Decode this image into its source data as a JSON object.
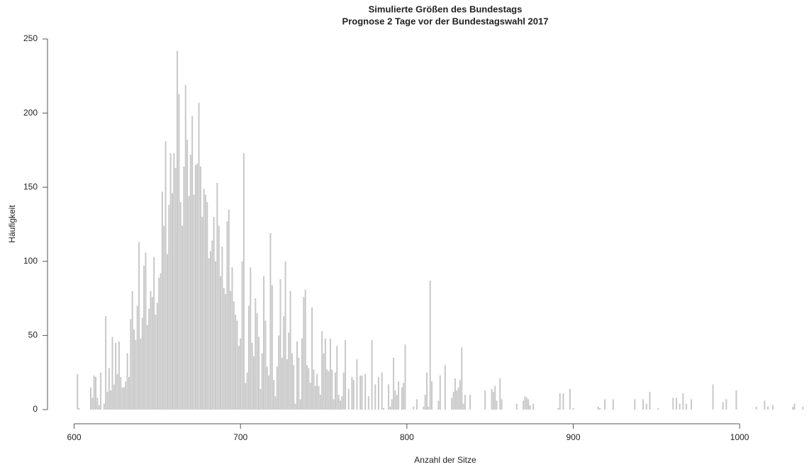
{
  "chart_data": {
    "type": "bar",
    "title": "Simulierte Größen des Bundestags",
    "subtitle": "Prognose 2 Tage vor der Bundestagswahl 2017",
    "x_label": "Anzahl der Sitze",
    "y_label": "Häufigkeit",
    "color": "#c8c8c8",
    "xlim": [
      584,
      1040
    ],
    "ylim": [
      0,
      250
    ],
    "xticks": [
      600,
      700,
      800,
      900,
      1000
    ],
    "yticks": [
      0,
      50,
      100,
      150,
      200,
      250
    ],
    "x": [
      602,
      603,
      610,
      611,
      612,
      613,
      614,
      615,
      616,
      618,
      619,
      620,
      621,
      622,
      623,
      624,
      625,
      626,
      627,
      628,
      629,
      630,
      631,
      632,
      633,
      634,
      635,
      636,
      637,
      638,
      639,
      640,
      641,
      642,
      643,
      644,
      645,
      646,
      647,
      648,
      649,
      650,
      651,
      652,
      653,
      654,
      655,
      656,
      657,
      658,
      659,
      660,
      661,
      662,
      663,
      664,
      665,
      666,
      667,
      668,
      669,
      670,
      671,
      672,
      673,
      674,
      675,
      676,
      677,
      678,
      679,
      680,
      681,
      682,
      683,
      684,
      685,
      686,
      687,
      688,
      689,
      690,
      691,
      692,
      693,
      694,
      695,
      696,
      697,
      698,
      699,
      700,
      701,
      702,
      703,
      704,
      705,
      706,
      707,
      708,
      709,
      710,
      711,
      712,
      713,
      714,
      715,
      716,
      717,
      718,
      719,
      720,
      721,
      722,
      723,
      724,
      725,
      726,
      727,
      728,
      729,
      730,
      731,
      732,
      733,
      734,
      735,
      736,
      737,
      738,
      739,
      740,
      741,
      742,
      743,
      744,
      745,
      746,
      747,
      748,
      749,
      750,
      751,
      752,
      753,
      754,
      755,
      756,
      757,
      758,
      759,
      760,
      761,
      762,
      763,
      765,
      767,
      768,
      770,
      772,
      773,
      775,
      777,
      779,
      781,
      783,
      785,
      786,
      789,
      790,
      791,
      792,
      793,
      794,
      795,
      797,
      798,
      799,
      804,
      806,
      810,
      811,
      812,
      813,
      814,
      815,
      819,
      820,
      823,
      827,
      828,
      829,
      830,
      831,
      832,
      833,
      834,
      835,
      838,
      847,
      851,
      852,
      853,
      854,
      856,
      857,
      866,
      870,
      871,
      872,
      873,
      874,
      876,
      891,
      892,
      894,
      898,
      900,
      915,
      916,
      919,
      924,
      937,
      942,
      944,
      946,
      951,
      960,
      962,
      964,
      966,
      968,
      971,
      984,
      990,
      992,
      998,
      1010,
      1015,
      1017,
      1020,
      1032,
      1033,
      1038
    ],
    "values": [
      24,
      1,
      15,
      8,
      23,
      22,
      8,
      3,
      25,
      4,
      63,
      12,
      28,
      13,
      49,
      17,
      45,
      24,
      46,
      22,
      15,
      15,
      19,
      38,
      22,
      61,
      80,
      54,
      47,
      70,
      113,
      48,
      62,
      97,
      106,
      57,
      68,
      80,
      76,
      103,
      64,
      72,
      89,
      92,
      147,
      124,
      181,
      105,
      138,
      173,
      146,
      173,
      163,
      242,
      213,
      140,
      124,
      164,
      219,
      182,
      144,
      172,
      198,
      145,
      165,
      166,
      207,
      164,
      130,
      149,
      145,
      140,
      102,
      107,
      114,
      130,
      100,
      153,
      124,
      90,
      110,
      82,
      78,
      127,
      135,
      80,
      96,
      73,
      64,
      60,
      43,
      48,
      100,
      173,
      18,
      25,
      70,
      96,
      45,
      36,
      75,
      65,
      49,
      14,
      38,
      90,
      60,
      29,
      23,
      119,
      84,
      20,
      9,
      29,
      50,
      88,
      35,
      63,
      100,
      34,
      52,
      80,
      38,
      30,
      4,
      46,
      35,
      7,
      48,
      76,
      81,
      30,
      28,
      18,
      69,
      27,
      16,
      24,
      16,
      10,
      53,
      38,
      48,
      27,
      26,
      48,
      27,
      7,
      25,
      43,
      10,
      6,
      9,
      25,
      47,
      14,
      22,
      20,
      34,
      23,
      23,
      24,
      9,
      47,
      17,
      22,
      25,
      1,
      17,
      2,
      7,
      35,
      13,
      10,
      19,
      15,
      18,
      44,
      2,
      7,
      2,
      10,
      25,
      2,
      87,
      19,
      6,
      23,
      30,
      8,
      12,
      21,
      13,
      15,
      20,
      42,
      4,
      10,
      10,
      13,
      14,
      12,
      16,
      6,
      21,
      7,
      4,
      6,
      9,
      8,
      7,
      3,
      4,
      1,
      11,
      11,
      14,
      1,
      2,
      1,
      7,
      7,
      7,
      7,
      4,
      12,
      1,
      8,
      8,
      4,
      11,
      4,
      7,
      17,
      5,
      7,
      13,
      2,
      6,
      2,
      3,
      2,
      4,
      2
    ]
  }
}
